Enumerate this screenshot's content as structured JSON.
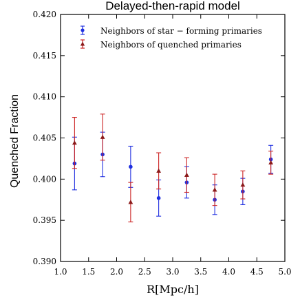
{
  "chart_data": {
    "type": "scatter",
    "title": "Delayed-then-rapid model",
    "xlabel": "R[Mpc/h]",
    "ylabel": "Quenched Fraction",
    "xlim": [
      1.0,
      5.0
    ],
    "ylim": [
      0.39,
      0.42
    ],
    "xticks": [
      "1.0",
      "1.5",
      "2.0",
      "2.5",
      "3.0",
      "3.5",
      "4.0",
      "4.5",
      "5.0"
    ],
    "yticks": [
      "0.390",
      "0.395",
      "0.400",
      "0.405",
      "0.410",
      "0.415",
      "0.420"
    ],
    "xtick_values": [
      1.0,
      1.5,
      2.0,
      2.5,
      3.0,
      3.5,
      4.0,
      4.5,
      5.0
    ],
    "ytick_values": [
      0.39,
      0.395,
      0.4,
      0.405,
      0.41,
      0.415,
      0.42
    ],
    "grid": false,
    "legend_position": "top-left",
    "series": [
      {
        "name": "Neighbors of star − forming primaries",
        "color": "#1f2fe0",
        "marker": "circle",
        "x": [
          1.25,
          1.75,
          2.25,
          2.75,
          3.25,
          3.75,
          4.25,
          4.75
        ],
        "y": [
          0.4019,
          0.403,
          0.4015,
          0.3977,
          0.3996,
          0.3975,
          0.3985,
          0.4024
        ],
        "err": [
          0.0032,
          0.0027,
          0.0025,
          0.0022,
          0.0019,
          0.0018,
          0.0016,
          0.0017
        ]
      },
      {
        "name": "Neighbors of quenched primaries",
        "color": "#cc2222",
        "marker": "triangle",
        "x": [
          1.25,
          1.75,
          2.25,
          2.75,
          3.25,
          3.75,
          4.25,
          4.75
        ],
        "y": [
          0.4044,
          0.4051,
          0.3972,
          0.401,
          0.4005,
          0.3987,
          0.3993,
          0.402
        ],
        "err": [
          0.0031,
          0.0028,
          0.0024,
          0.0022,
          0.0021,
          0.0019,
          0.0017,
          0.0014
        ]
      }
    ]
  }
}
